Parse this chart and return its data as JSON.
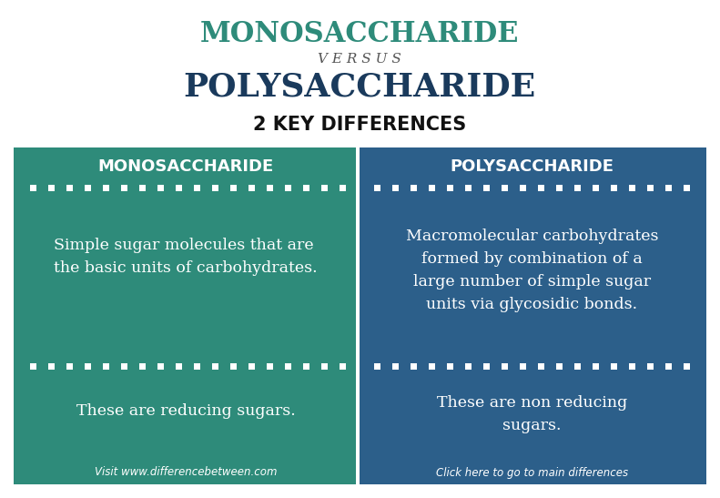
{
  "title1": "MONOSACCHARIDE",
  "versus": "V E R S U S",
  "title2": "POLYSACCHARIDE",
  "subtitle": "2 KEY DIFFERENCES",
  "col1_header": "MONOSACCHARIDE",
  "col2_header": "POLYSACCHARIDE",
  "col1_text1": "Simple sugar molecules that are\nthe basic units of carbohydrates.",
  "col2_text1": "Macromolecular carbohydrates\nformed by combination of a\nlarge number of simple sugar\nunits via glycosidic bonds.",
  "col1_text2": "These are reducing sugars.",
  "col2_text2": "These are non reducing\nsugars.",
  "col1_footer": "Visit www.differencebetween.com",
  "col2_footer": "Click here to go to main differences",
  "teal_color": "#2e8b7a",
  "blue_color": "#2c5f8a",
  "title1_color": "#2e8b7a",
  "title2_color": "#1a3a5c",
  "versus_color": "#555555",
  "subtitle_color": "#111111",
  "white_color": "#ffffff",
  "background_color": "#ffffff"
}
